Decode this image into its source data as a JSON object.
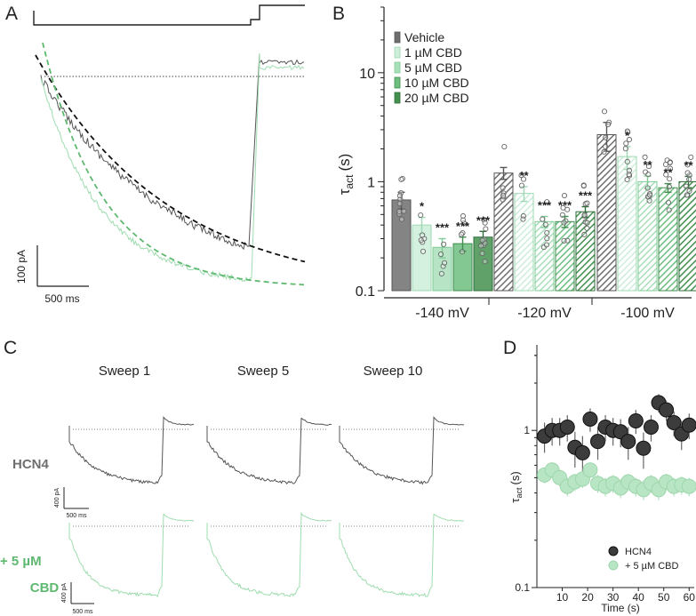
{
  "colors": {
    "vehicle": "#6e6e6e",
    "cbd1": "#cdeedb",
    "cbd5": "#a9dfbb",
    "cbd10": "#6dbe7f",
    "cbd20": "#43904f",
    "cbd_dark": "#2e7a3f",
    "trace_black": "#555555",
    "trace_green": "#9fdcb0",
    "fit_green": "#5fb870",
    "text_green": "#5fb870",
    "axis": "#222222",
    "dot_black": "#3c3c3c",
    "dot_green": "#b8e6c4"
  },
  "panel_a": {
    "letter": "A",
    "scale_current": "100 pA",
    "scale_time": "500 ms"
  },
  "panel_b": {
    "letter": "B",
    "significance_stars": [
      [
        "*",
        "***",
        "***",
        "***"
      ],
      [
        "**",
        "***",
        "***",
        "***"
      ],
      [
        "*",
        "**",
        "**",
        "**"
      ]
    ]
  },
  "panel_c": {
    "letter": "C",
    "sweep_titles": [
      "Sweep 1",
      "Sweep 5",
      "Sweep 10"
    ],
    "row_labels": {
      "hcn4": "HCN4",
      "cbd_line1": "+ 5 µM",
      "cbd_line2": "CBD"
    },
    "scale_current": "400 pA",
    "scale_time": "500 ms"
  },
  "panel_d": {
    "letter": "D"
  },
  "chart_data": [
    {
      "type": "bar",
      "title": "",
      "ylabel": "τact (s)",
      "ylabel_main": "τ",
      "ylabel_sub": "act",
      "ylabel_unit": "(s)",
      "yscale": "log",
      "ylim": [
        0.1,
        40
      ],
      "yticks": [
        0.1,
        1,
        10
      ],
      "ytick_labels": [
        "0.1",
        "1",
        "10"
      ],
      "categories": [
        "-140 mV",
        "-120 mV",
        "-100 mV"
      ],
      "legend_position": "top-left",
      "series": [
        {
          "name": "Vehicle",
          "values": [
            0.68,
            1.2,
            2.7
          ],
          "errors": [
            0.12,
            0.15,
            0.8
          ]
        },
        {
          "name": "1 µM CBD",
          "values": [
            0.4,
            0.78,
            1.7
          ],
          "errors": [
            0.07,
            0.12,
            0.4
          ]
        },
        {
          "name": "5 µM CBD",
          "values": [
            0.25,
            0.43,
            1.0
          ],
          "errors": [
            0.05,
            0.05,
            0.13
          ]
        },
        {
          "name": "10 µM CBD",
          "values": [
            0.27,
            0.43,
            0.88
          ],
          "errors": [
            0.04,
            0.05,
            0.08
          ]
        },
        {
          "name": "20 µM CBD",
          "values": [
            0.31,
            0.53,
            1.0
          ],
          "errors": [
            0.04,
            0.06,
            0.12
          ]
        }
      ]
    },
    {
      "type": "scatter",
      "title": "",
      "xlabel": "Time (s)",
      "ylabel": "τact (s)",
      "ylabel_main": "τ",
      "ylabel_sub": "act",
      "ylabel_unit": "(s)",
      "yscale": "log",
      "xlim": [
        0,
        62
      ],
      "ylim": [
        0.1,
        3.5
      ],
      "xticks": [
        10,
        20,
        30,
        40,
        50,
        60
      ],
      "xtick_labels": [
        "10",
        "20",
        "30",
        "40",
        "50",
        "60"
      ],
      "yticks": [
        0.1,
        1
      ],
      "ytick_labels": [
        "0.1",
        "1"
      ],
      "legend_position": "bottom-right",
      "series": [
        {
          "name": "HCN4",
          "x": [
            3,
            6,
            9,
            12,
            15,
            18,
            21,
            24,
            27,
            30,
            33,
            36,
            39,
            42,
            45,
            48,
            51,
            54,
            57,
            60
          ],
          "values": [
            0.92,
            1.0,
            1.0,
            1.05,
            0.78,
            0.72,
            1.18,
            0.85,
            1.05,
            1.0,
            0.98,
            0.85,
            1.15,
            0.77,
            1.05,
            1.5,
            1.35,
            1.12,
            0.95,
            1.08
          ]
        },
        {
          "name": "+ 5 µM CBD",
          "x": [
            3,
            6,
            9,
            12,
            15,
            18,
            21,
            24,
            27,
            30,
            33,
            36,
            39,
            42,
            45,
            48,
            51,
            54,
            57,
            60
          ],
          "values": [
            0.52,
            0.56,
            0.5,
            0.44,
            0.47,
            0.49,
            0.56,
            0.46,
            0.44,
            0.46,
            0.43,
            0.47,
            0.44,
            0.42,
            0.46,
            0.42,
            0.47,
            0.44,
            0.45,
            0.44
          ]
        }
      ]
    }
  ]
}
